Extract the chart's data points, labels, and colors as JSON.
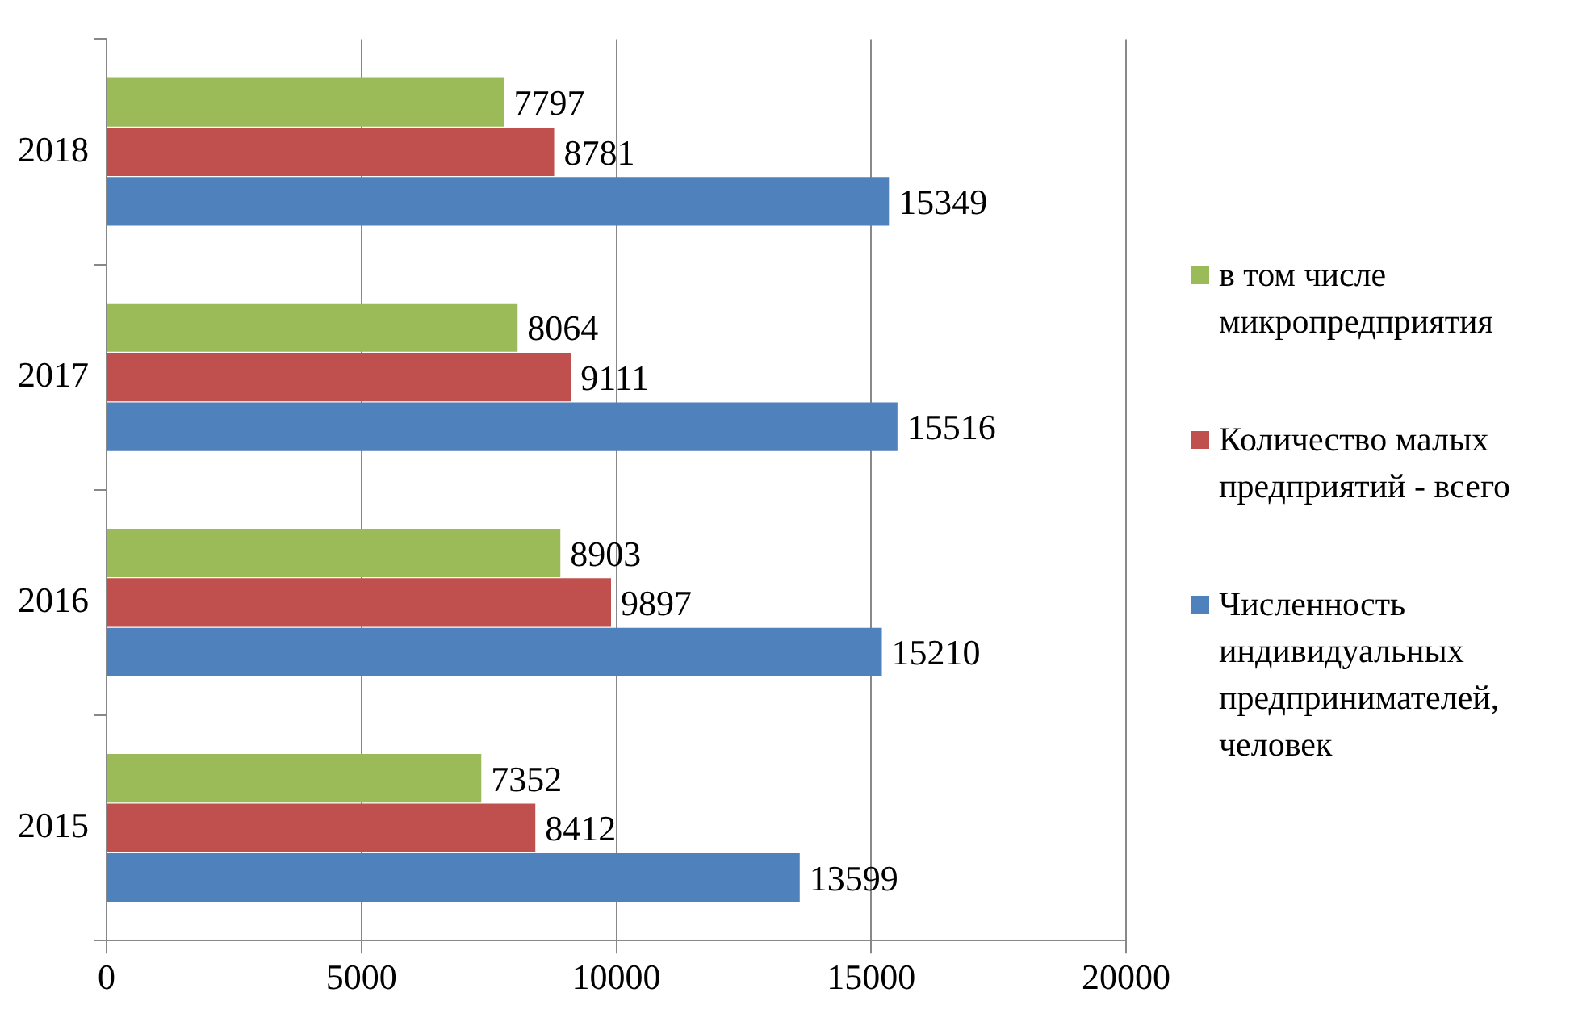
{
  "chart_data": {
    "type": "bar",
    "orientation": "horizontal",
    "categories": [
      "2018",
      "2017",
      "2016",
      "2015"
    ],
    "series": [
      {
        "name": "в том числе микропредприятия",
        "color": "#9bbb59",
        "values": [
          7797,
          8064,
          8903,
          7352
        ]
      },
      {
        "name": "Количество малых предприятий - всего",
        "color": "#c0504d",
        "values": [
          8781,
          9111,
          9897,
          8412
        ]
      },
      {
        "name": "Численность индивидуальных предпринимателей, человек",
        "color": "#4f81bd",
        "values": [
          15349,
          15516,
          15210,
          13599
        ]
      }
    ],
    "xlim": [
      0,
      20000
    ],
    "xticks": [
      0,
      5000,
      10000,
      15000,
      20000
    ],
    "grid": "x",
    "legend": "right",
    "data_labels": true
  }
}
